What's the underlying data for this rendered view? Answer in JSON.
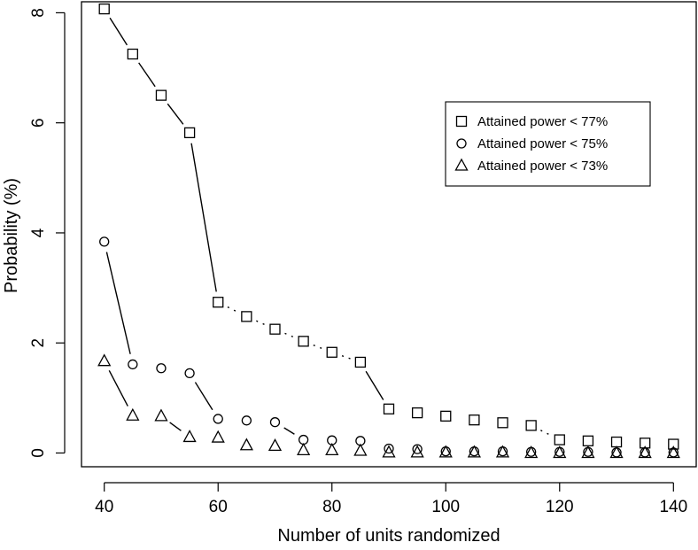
{
  "chart_data": {
    "type": "scatter",
    "xlabel": "Number of units randomized",
    "ylabel": "Probability (%)",
    "xlim": [
      36,
      144
    ],
    "ylim": [
      -0.25,
      8.2
    ],
    "xticks": [
      40,
      60,
      80,
      100,
      120,
      140
    ],
    "yticks": [
      0,
      2,
      4,
      6,
      8
    ],
    "x_tick_labels": [
      "40",
      "60",
      "80",
      "100",
      "120",
      "140"
    ],
    "y_tick_labels": [
      "0",
      "2",
      "4",
      "6",
      "8"
    ],
    "grid": false,
    "legend_position": "top-right",
    "x": [
      40,
      45,
      50,
      55,
      60,
      65,
      70,
      75,
      80,
      85,
      90,
      95,
      100,
      105,
      110,
      115,
      120,
      125,
      130,
      135,
      140
    ],
    "series": [
      {
        "name": "Attained power < 77%",
        "marker": "square",
        "values": [
          8.07,
          7.25,
          6.5,
          5.82,
          2.74,
          2.48,
          2.25,
          2.03,
          1.83,
          1.65,
          0.8,
          0.73,
          0.67,
          0.6,
          0.55,
          0.5,
          0.24,
          0.22,
          0.2,
          0.18,
          0.16
        ]
      },
      {
        "name": "Attained power < 75%",
        "marker": "circle",
        "values": [
          3.84,
          1.61,
          1.54,
          1.45,
          0.62,
          0.59,
          0.56,
          0.24,
          0.23,
          0.22,
          0.08,
          0.07,
          0.03,
          0.03,
          0.03,
          0.02,
          0.02,
          0.02,
          0.01,
          0.01,
          0.01
        ]
      },
      {
        "name": "Attained power < 73%",
        "marker": "triangle",
        "values": [
          1.67,
          0.68,
          0.67,
          0.29,
          0.28,
          0.14,
          0.13,
          0.05,
          0.05,
          0.04,
          0.01,
          0.01,
          0.01,
          0.01,
          0.01,
          0.0,
          0.0,
          0.0,
          0.0,
          0.0,
          0.0
        ]
      }
    ],
    "segments": [
      {
        "series": 0,
        "from": 0,
        "to": 1,
        "style": "solid"
      },
      {
        "series": 0,
        "from": 1,
        "to": 2,
        "style": "solid"
      },
      {
        "series": 0,
        "from": 2,
        "to": 3,
        "style": "solid"
      },
      {
        "series": 0,
        "from": 3,
        "to": 4,
        "style": "solid"
      },
      {
        "series": 0,
        "from": 4,
        "to": 5,
        "style": "dotted"
      },
      {
        "series": 0,
        "from": 5,
        "to": 6,
        "style": "dotted"
      },
      {
        "series": 0,
        "from": 6,
        "to": 7,
        "style": "dotted"
      },
      {
        "series": 0,
        "from": 7,
        "to": 8,
        "style": "dotted"
      },
      {
        "series": 0,
        "from": 8,
        "to": 9,
        "style": "dotted"
      },
      {
        "series": 0,
        "from": 9,
        "to": 10,
        "style": "solid"
      },
      {
        "series": 0,
        "from": 15,
        "to": 16,
        "style": "dotted"
      },
      {
        "series": 1,
        "from": 0,
        "to": 1,
        "style": "solid"
      },
      {
        "series": 1,
        "from": 3,
        "to": 4,
        "style": "solid"
      },
      {
        "series": 1,
        "from": 6,
        "to": 7,
        "style": "solid"
      },
      {
        "series": 2,
        "from": 0,
        "to": 1,
        "style": "solid"
      },
      {
        "series": 2,
        "from": 2,
        "to": 3,
        "style": "solid"
      }
    ]
  }
}
